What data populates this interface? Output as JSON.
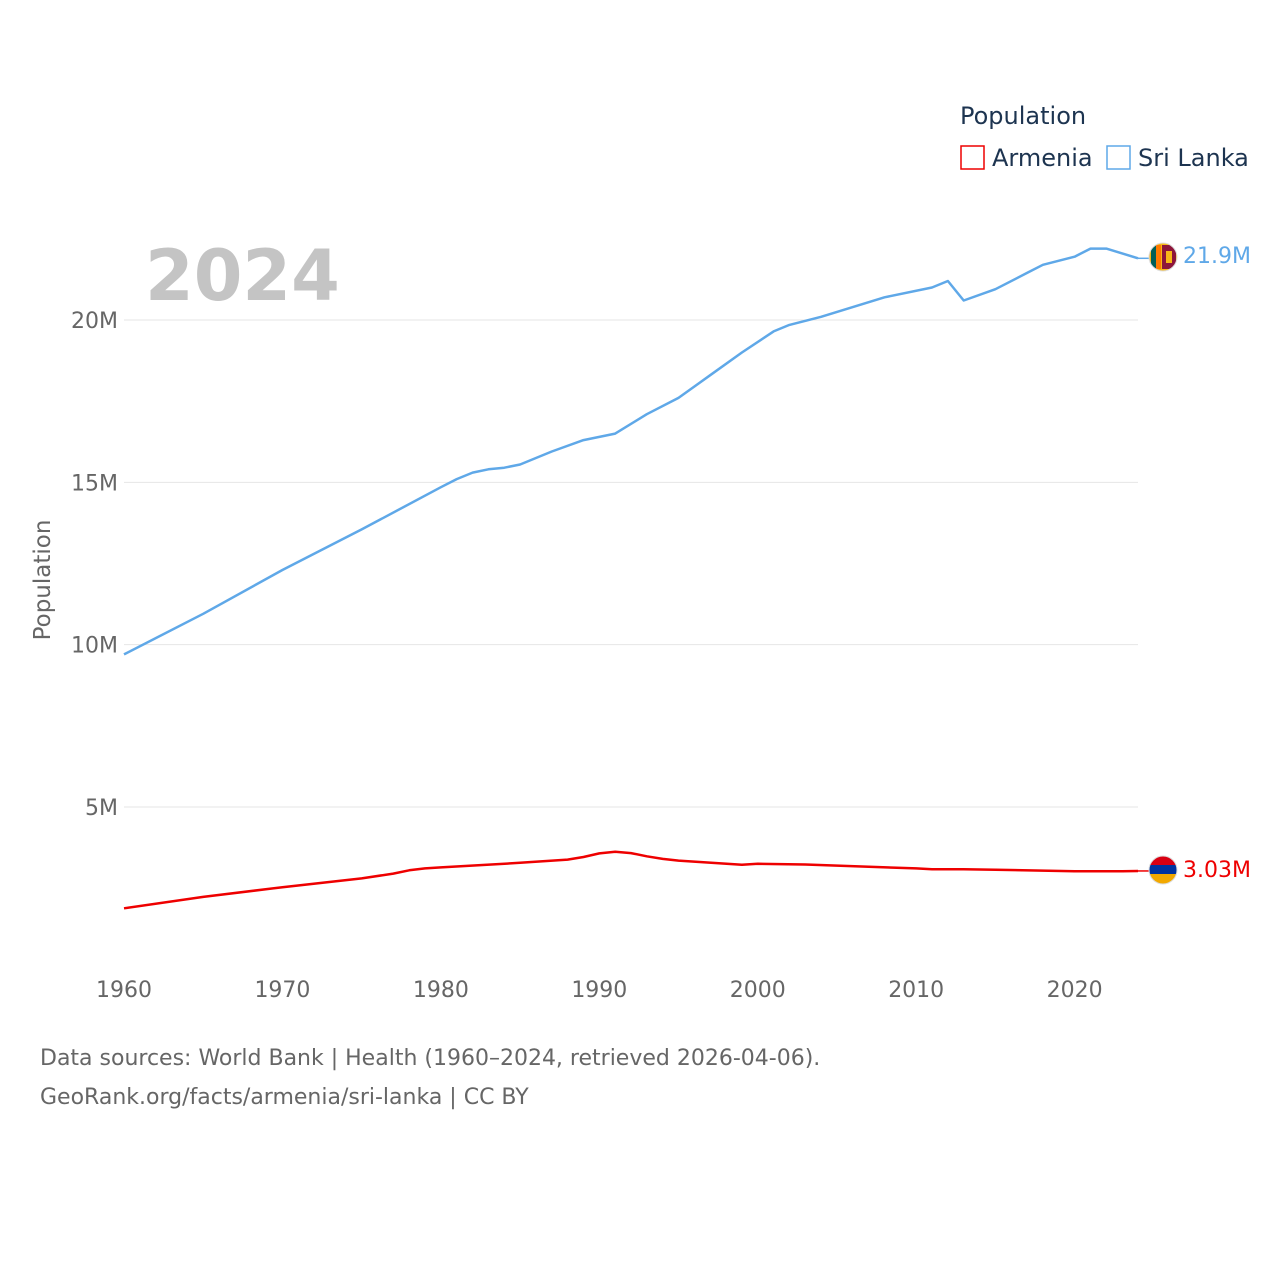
{
  "colors": {
    "armenia": "#ee0000",
    "sri_lanka": "#5fa8e8",
    "year_label": "#c4c4c4",
    "text": "#666666",
    "legend_text": "#1d3450"
  },
  "year_label": "2024",
  "legend": {
    "title": "Population",
    "items": [
      {
        "name": "Armenia",
        "color": "#ee0000"
      },
      {
        "name": "Sri Lanka",
        "color": "#5fa8e8"
      }
    ]
  },
  "end_labels": {
    "armenia": "3.03M",
    "sri_lanka": "21.9M"
  },
  "flags": {
    "armenia": "armenia-flag-icon",
    "sri_lanka": "sri-lanka-flag-icon"
  },
  "footer": {
    "line1": "Data sources: World Bank | Health (1960–2024, retrieved 2026-04-06).",
    "line2": "GeoRank.org/facts/armenia/sri-lanka | CC BY"
  },
  "chart_data": {
    "type": "line",
    "title": "",
    "xlabel": "",
    "ylabel": "Population",
    "xlim": [
      1960,
      2024
    ],
    "ylim": [
      1000000,
      23000000
    ],
    "x_ticks": [
      1960,
      1970,
      1980,
      1990,
      2000,
      2010,
      2020
    ],
    "x_tick_labels": [
      "1960",
      "1970",
      "1980",
      "1990",
      "2000",
      "2010",
      "2020"
    ],
    "y_ticks": [
      5000000,
      10000000,
      15000000,
      20000000
    ],
    "y_tick_labels": [
      "5M",
      "10M",
      "15M",
      "20M"
    ],
    "legend_title": "Population",
    "series": [
      {
        "name": "Armenia",
        "color": "#ee0000",
        "x": [
          1960,
          1965,
          1970,
          1975,
          1977,
          1978,
          1979,
          1980,
          1985,
          1988,
          1989,
          1990,
          1991,
          1992,
          1993,
          1994,
          1995,
          1999,
          2000,
          2003,
          2010,
          2011,
          2013,
          2015,
          2020,
          2023,
          2024
        ],
        "values": [
          1880000,
          2230000,
          2530000,
          2800000,
          2950000,
          3050000,
          3110000,
          3140000,
          3280000,
          3380000,
          3460000,
          3570000,
          3620000,
          3580000,
          3480000,
          3400000,
          3350000,
          3220000,
          3250000,
          3230000,
          3110000,
          3080000,
          3080000,
          3070000,
          3020000,
          3020000,
          3030000
        ]
      },
      {
        "name": "Sri Lanka",
        "color": "#5fa8e8",
        "x": [
          1960,
          1965,
          1970,
          1975,
          1980,
          1981,
          1982,
          1983,
          1984,
          1985,
          1987,
          1989,
          1991,
          1993,
          1995,
          1997,
          1999,
          2001,
          2002,
          2004,
          2008,
          2011,
          2012,
          2013,
          2015,
          2017,
          2018,
          2020,
          2021,
          2022,
          2023,
          2024
        ],
        "values": [
          9700000,
          10950000,
          12300000,
          13550000,
          14850000,
          15100000,
          15300000,
          15400000,
          15450000,
          15550000,
          15950000,
          16300000,
          16500000,
          17100000,
          17600000,
          18300000,
          19000000,
          19650000,
          19850000,
          20100000,
          20700000,
          21000000,
          21200000,
          20600000,
          20950000,
          21450000,
          21700000,
          21950000,
          22200000,
          22200000,
          22050000,
          21900000
        ]
      }
    ]
  }
}
